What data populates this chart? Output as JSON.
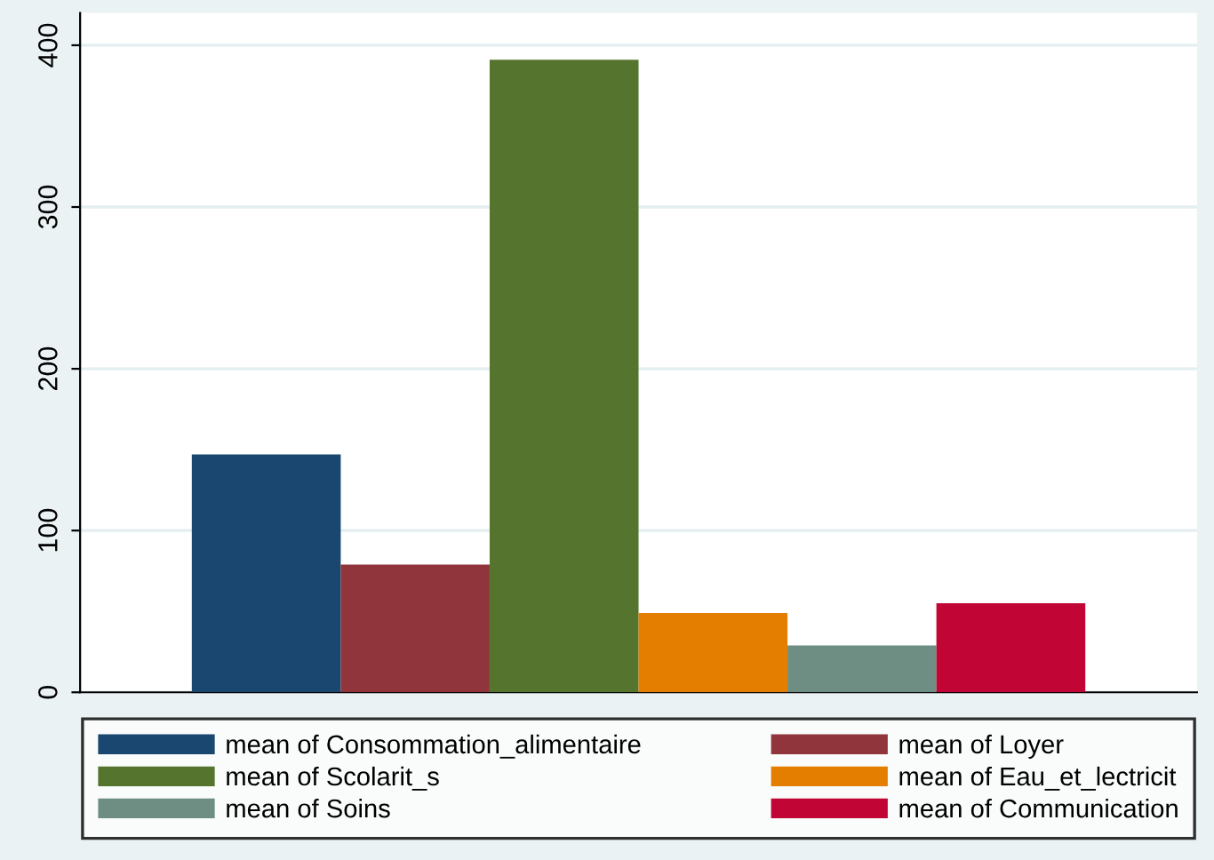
{
  "chart_data": {
    "type": "bar",
    "categories": [
      null
    ],
    "series": [
      {
        "name": "mean of Consommation_alimentaire",
        "color": "#1a476f",
        "values": [
          147
        ]
      },
      {
        "name": "mean of Loyer",
        "color": "#90353b",
        "values": [
          79
        ]
      },
      {
        "name": "mean of Scolarit_s",
        "color": "#55752f",
        "values": [
          391
        ]
      },
      {
        "name": "mean of Eau_et_lectricit",
        "color": "#e37e00",
        "values": [
          49
        ]
      },
      {
        "name": "mean of Soins",
        "color": "#6e8e84",
        "values": [
          29
        ]
      },
      {
        "name": "mean of Communication",
        "color": "#c10534",
        "values": [
          55
        ]
      }
    ],
    "ylim": [
      0,
      420
    ],
    "yticks": [
      0,
      100,
      200,
      300,
      400
    ],
    "grid": "y",
    "legend": "bottom"
  }
}
